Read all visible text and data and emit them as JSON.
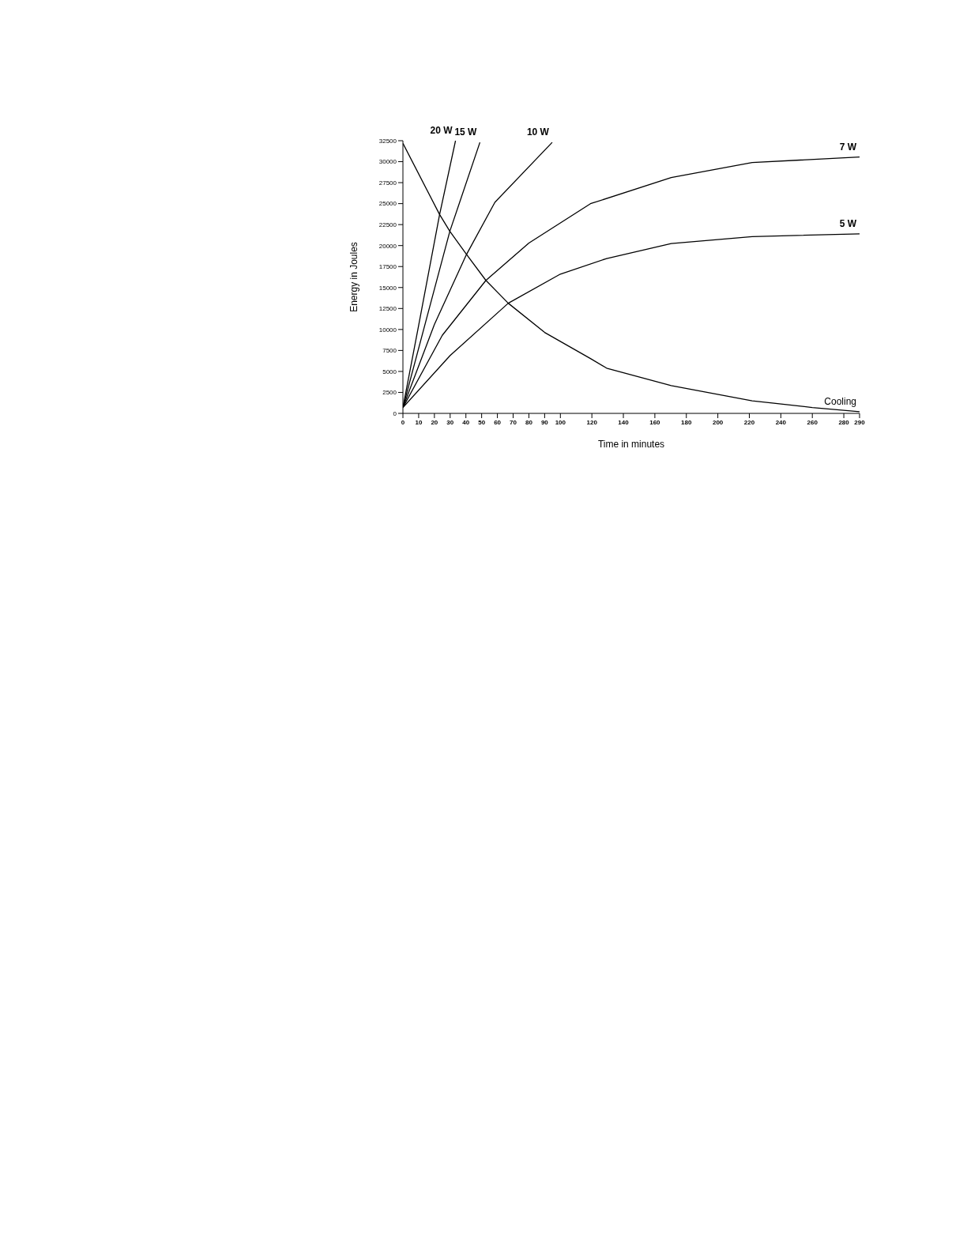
{
  "chart_data": {
    "type": "line",
    "xlabel": "Time in minutes",
    "ylabel": "Energy in Joules",
    "xlim": [
      0,
      290
    ],
    "xticks": [
      0,
      10,
      20,
      30,
      40,
      50,
      60,
      70,
      80,
      90,
      100,
      120,
      140,
      160,
      180,
      200,
      220,
      240,
      260,
      280,
      290
    ],
    "ylim": [
      0,
      32500
    ],
    "yticks": [
      0,
      2500,
      5000,
      7500,
      10000,
      12500,
      15000,
      17500,
      20000,
      22500,
      25000,
      27500,
      30000,
      32500
    ],
    "grid": false,
    "legend": false,
    "marker": "none",
    "line_style": "solid",
    "series": [
      {
        "name": "20 W",
        "color": "#000000",
        "x": [
          0,
          10,
          23.3,
          33.4
        ],
        "values": [
          700,
          10500,
          23700,
          32500
        ]
      },
      {
        "name": "15 W",
        "color": "#000000",
        "x": [
          0,
          15,
          29.8,
          48.9
        ],
        "values": [
          700,
          11300,
          21700,
          32300
        ]
      },
      {
        "name": "10 W",
        "color": "#000000",
        "x": [
          0,
          20,
          40.4,
          58.4,
          94.8
        ],
        "values": [
          700,
          10600,
          18950,
          25150,
          32300
        ]
      },
      {
        "name": "7 W",
        "color": "#000000",
        "x": [
          0,
          25,
          52.7,
          80,
          119.1,
          170.4,
          221.8,
          290
        ],
        "values": [
          700,
          9300,
          15850,
          20300,
          24990,
          28100,
          29900,
          30550
        ]
      },
      {
        "name": "5 W",
        "color": "#000000",
        "x": [
          0,
          30,
          66.9,
          100,
          129.4,
          170.4,
          221.8,
          290
        ],
        "values": [
          700,
          6900,
          13130,
          16600,
          18460,
          20250,
          21070,
          21400
        ]
      },
      {
        "name": "Cooling",
        "color": "#000000",
        "x": [
          0,
          23.3,
          29.8,
          40.4,
          52.7,
          66.9,
          90,
          119.1,
          129.4,
          170.4,
          221.8,
          260,
          290
        ],
        "values": [
          32180,
          23700,
          21700,
          18950,
          15850,
          13130,
          9650,
          6540,
          5390,
          3300,
          1500,
          700,
          200
        ]
      }
    ]
  }
}
